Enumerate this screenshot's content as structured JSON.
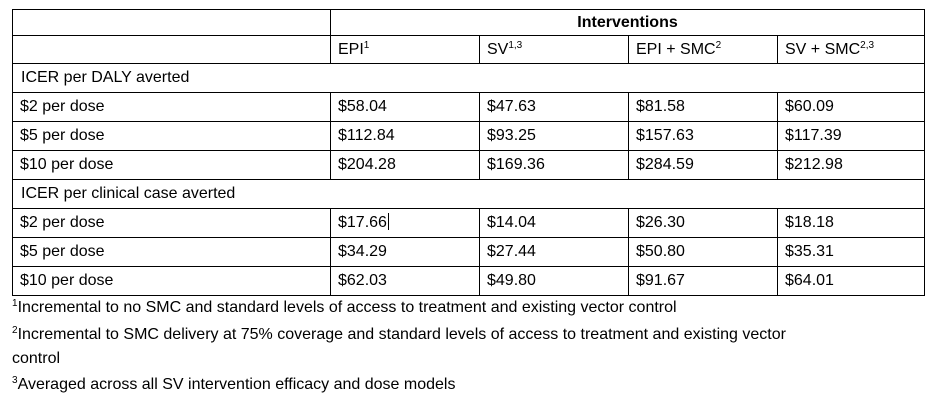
{
  "table": {
    "title": "Interventions",
    "columns": [
      {
        "label": "EPI",
        "sup": "1"
      },
      {
        "label": "SV",
        "sup": "1,3"
      },
      {
        "label": "EPI + SMC",
        "sup": "2"
      },
      {
        "label": "SV + SMC",
        "sup": "2,3"
      }
    ],
    "sections": [
      {
        "title": "ICER per DALY averted",
        "rows": [
          {
            "label": "$2 per dose",
            "values": [
              "$58.04",
              "$47.63",
              "$81.58",
              "$60.09"
            ]
          },
          {
            "label": "$5 per dose",
            "values": [
              "$112.84",
              "$93.25",
              "$157.63",
              "$117.39"
            ]
          },
          {
            "label": "$10 per dose",
            "values": [
              "$204.28",
              "$169.36",
              "$284.59",
              "$212.98"
            ]
          }
        ]
      },
      {
        "title": "ICER per clinical case averted",
        "rows": [
          {
            "label": "$2 per dose",
            "values": [
              "$17.66",
              "$14.04",
              "$26.30",
              "$18.18"
            ]
          },
          {
            "label": "$5 per dose",
            "values": [
              "$34.29",
              "$27.44",
              "$50.80",
              "$35.31"
            ]
          },
          {
            "label": "$10 per dose",
            "values": [
              "$62.03",
              "$49.80",
              "$91.67",
              "$64.01"
            ]
          }
        ]
      }
    ]
  },
  "footnotes": [
    {
      "sup": "1",
      "text": "Incremental to no SMC and standard levels of access to treatment and existing vector control"
    },
    {
      "sup": "2",
      "text": "Incremental to SMC delivery at 75% coverage and standard levels of access to treatment and existing vector",
      "cont": "control"
    },
    {
      "sup": "3",
      "text": "Averaged across all SV intervention efficacy and dose models"
    }
  ]
}
